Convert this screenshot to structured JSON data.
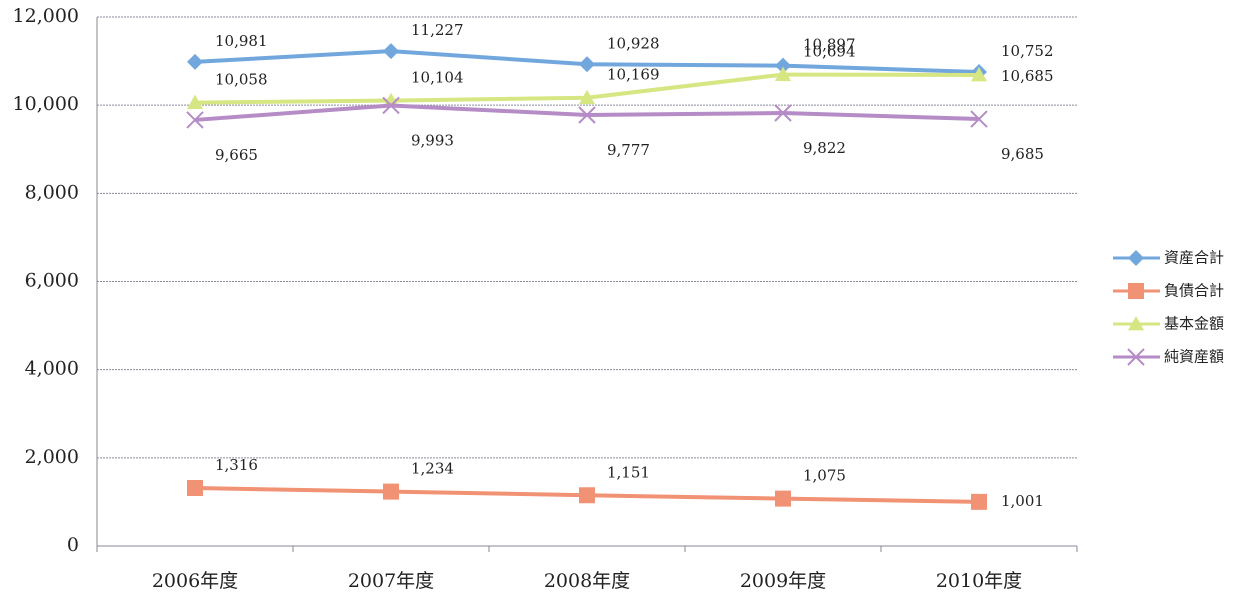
{
  "chart_data": {
    "type": "line",
    "categories": [
      "2006年度",
      "2007年度",
      "2008年度",
      "2009年度",
      "2010年度"
    ],
    "series": [
      {
        "name": "資産合計",
        "color": "#72a7dd",
        "marker": "diamond",
        "values": [
          10981,
          11227,
          10928,
          10897,
          10752
        ],
        "value_labels": [
          "10,981",
          "11,227",
          "10,928",
          "10,897",
          "10,752"
        ]
      },
      {
        "name": "負債合計",
        "color": "#f29274",
        "marker": "square",
        "values": [
          1316,
          1234,
          1151,
          1075,
          1001
        ],
        "value_labels": [
          "1,316",
          "1,234",
          "1,151",
          "1,075",
          "1,001"
        ]
      },
      {
        "name": "基本金額",
        "color": "#d6e682",
        "marker": "triangle",
        "values": [
          10058,
          10104,
          10169,
          10694,
          10685
        ],
        "value_labels": [
          "10,058",
          "10,104",
          "10,169",
          "10,694",
          "10,685"
        ]
      },
      {
        "name": "純資産額",
        "color": "#b58cc6",
        "marker": "x",
        "values": [
          9665,
          9993,
          9777,
          9822,
          9685
        ],
        "value_labels": [
          "9,665",
          "9,993",
          "9,777",
          "9,822",
          "9,685"
        ]
      }
    ],
    "ylim": [
      0,
      12000
    ],
    "yticks": [
      0,
      {
        "value": 2000,
        "label": "2,000"
      },
      {
        "value": 4000,
        "label": "4,000"
      },
      {
        "value": 6000,
        "label": "6,000"
      },
      {
        "value": 8000,
        "label": "8,000"
      },
      {
        "value": 10000,
        "label": "10,000"
      },
      {
        "value": 12000,
        "label": "12,000"
      }
    ],
    "grid": true,
    "legend": "right"
  }
}
